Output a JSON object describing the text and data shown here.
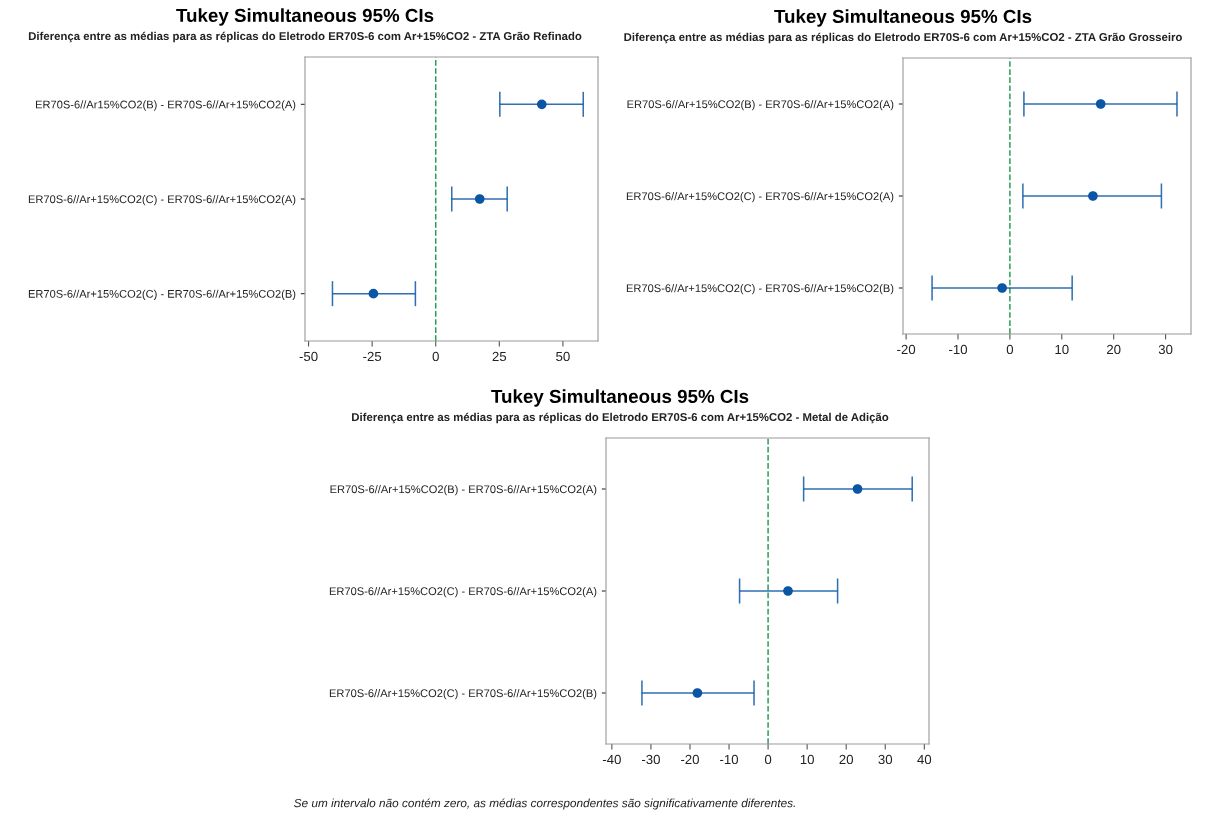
{
  "chart_data": [
    {
      "type": "scatter",
      "orientation": "horizontal",
      "title": "Tukey Simultaneous 95% CIs",
      "subtitle": "Diferença entre as médias para as réplicas do Eletrodo ER70S-6 com Ar+15%CO2 - ZTA Grão Refinado",
      "categories": [
        "ER70S-6//Ar15%CO2(B) - ER70S-6//Ar+15%CO2(A)",
        "ER70S-6//Ar+15%CO2(C) - ER70S-6//Ar+15%CO2(A)",
        "ER70S-6//Ar+15%CO2(C) - ER70S-6//Ar+15%CO2(B)"
      ],
      "color": "#0b56a4",
      "values": [
        41.7,
        17.3,
        -24.5
      ],
      "errors": [
        [
          25.2,
          58.0
        ],
        [
          6.3,
          28.1
        ],
        [
          -40.6,
          -8.0
        ]
      ],
      "xlim": [
        -51.4,
        63.8
      ],
      "xticks": [
        -50,
        -25,
        0,
        25,
        50
      ],
      "marker": "circle",
      "grid": false,
      "legend": false,
      "ref_lines": [
        {
          "axis": "x",
          "value": 0,
          "color": "#2e9e5b",
          "line_style": "dashed"
        }
      ]
    },
    {
      "type": "scatter",
      "orientation": "horizontal",
      "title": "Tukey Simultaneous 95% CIs",
      "subtitle": "Diferença entre as médias para as réplicas do Eletrodo ER70S-6 com Ar+15%CO2 - ZTA Grão Grosseiro",
      "categories": [
        "ER70S-6//Ar+15%CO2(B) - ER70S-6//Ar+15%CO2(A)",
        "ER70S-6//Ar+15%CO2(C) - ER70S-6//Ar+15%CO2(A)",
        "ER70S-6//Ar+15%CO2(C) - ER70S-6//Ar+15%CO2(B)"
      ],
      "color": "#0b56a4",
      "values": [
        17.5,
        16.0,
        -1.5
      ],
      "errors": [
        [
          2.7,
          32.2
        ],
        [
          2.5,
          29.2
        ],
        [
          -15.0,
          12.0
        ]
      ],
      "xlim": [
        -20.6,
        34.9
      ],
      "xticks": [
        -20,
        -10,
        0,
        10,
        20,
        30
      ],
      "marker": "circle",
      "grid": false,
      "legend": false,
      "ref_lines": [
        {
          "axis": "x",
          "value": 0,
          "color": "#2e9e5b",
          "line_style": "dashed"
        }
      ]
    },
    {
      "type": "scatter",
      "orientation": "horizontal",
      "title": "Tukey Simultaneous 95% CIs",
      "subtitle": "Diferença entre as médias para as réplicas do Eletrodo ER70S-6 com Ar+15%CO2 - Metal de Adição",
      "categories": [
        "ER70S-6//Ar+15%CO2(B) - ER70S-6//Ar+15%CO2(A)",
        "ER70S-6//Ar+15%CO2(C) - ER70S-6//Ar+15%CO2(A)",
        "ER70S-6//Ar+15%CO2(C) - ER70S-6//Ar+15%CO2(B)"
      ],
      "color": "#0b56a4",
      "values": [
        22.9,
        5.1,
        -18.1
      ],
      "errors": [
        [
          9.1,
          36.9
        ],
        [
          -7.3,
          17.8
        ],
        [
          -32.3,
          -3.6
        ]
      ],
      "xlim": [
        -41.5,
        41.2
      ],
      "xticks": [
        -40,
        -30,
        -20,
        -10,
        0,
        10,
        20,
        30,
        40
      ],
      "marker": "circle",
      "grid": false,
      "legend": false,
      "ref_lines": [
        {
          "axis": "x",
          "value": 0,
          "color": "#2e9e5b",
          "line_style": "dashed"
        }
      ],
      "annotations": [
        "Se um intervalo não contém zero, as médias correspondentes são significativamente diferentes."
      ]
    }
  ]
}
